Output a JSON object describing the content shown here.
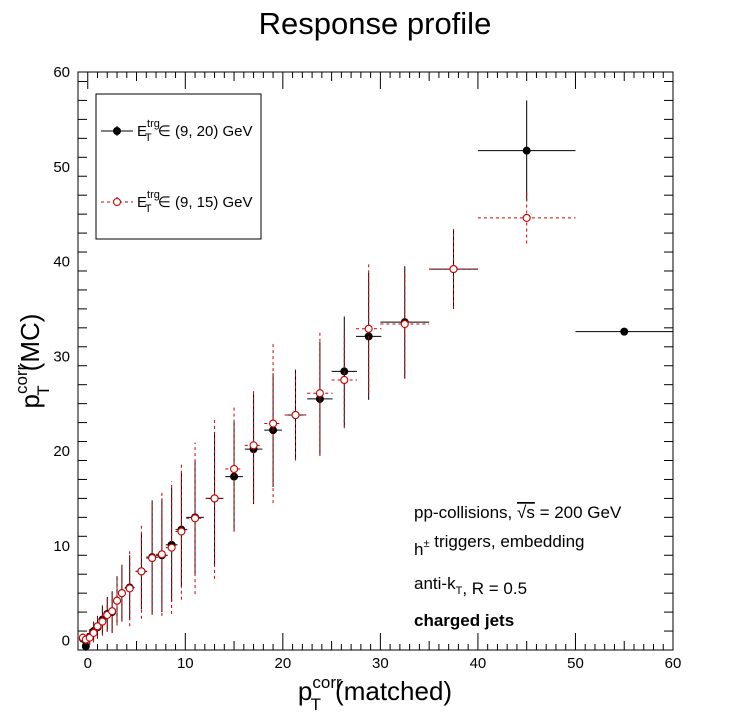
{
  "chart_data": {
    "type": "scatter",
    "title": "Response profile",
    "xlabel": {
      "base": "p",
      "sup": "corr",
      "sub": "T",
      "rest": "(matched)"
    },
    "ylabel": {
      "base": "p",
      "sup": "corr",
      "sub": "T",
      "rest": "(MC)"
    },
    "xlim": [
      -1,
      60
    ],
    "ylim": [
      -1,
      60
    ],
    "x_ticks": [
      0,
      10,
      20,
      30,
      40,
      50,
      60
    ],
    "y_ticks": [
      0,
      10,
      20,
      30,
      40,
      50,
      60
    ],
    "x_tick_labels": [
      "0",
      "10",
      "20",
      "30",
      "40",
      "50",
      "60"
    ],
    "y_tick_labels": [
      "0",
      "10",
      "20",
      "30",
      "40",
      "50",
      "60"
    ],
    "legend_position": "top-left",
    "series": [
      {
        "name": {
          "base": "E",
          "sup": "trg",
          "sub": "T",
          "rest": " ∈ (9, 20) GeV"
        },
        "color": "#000000",
        "marker": "filled-circle",
        "line": "solid",
        "points": [
          {
            "x": -0.5,
            "y": 0.2,
            "xe": 0.25,
            "ye": 0.5
          },
          {
            "x": -0.2,
            "y": -0.6,
            "xe": 0.25,
            "ye": 0.5
          },
          {
            "x": 0.2,
            "y": 0.4,
            "xe": 0.25,
            "ye": 0.8
          },
          {
            "x": 0.6,
            "y": 1.0,
            "xe": 0.25,
            "ye": 1.0
          },
          {
            "x": 1.0,
            "y": 1.4,
            "xe": 0.25,
            "ye": 1.2
          },
          {
            "x": 1.5,
            "y": 2.2,
            "xe": 0.3,
            "ye": 1.5
          },
          {
            "x": 2.0,
            "y": 2.8,
            "xe": 0.3,
            "ye": 1.8
          },
          {
            "x": 2.5,
            "y": 3.0,
            "xe": 0.3,
            "ye": 2.2
          },
          {
            "x": 3.0,
            "y": 4.2,
            "xe": 0.3,
            "ye": 2.6
          },
          {
            "x": 3.5,
            "y": 5.0,
            "xe": 0.3,
            "ye": 3.0
          },
          {
            "x": 4.3,
            "y": 5.6,
            "xe": 0.5,
            "ye": 3.4
          },
          {
            "x": 5.5,
            "y": 7.3,
            "xe": 0.6,
            "ye": 4.0
          },
          {
            "x": 6.6,
            "y": 8.8,
            "xe": 0.6,
            "ye": 6.0
          },
          {
            "x": 7.6,
            "y": 9.0,
            "xe": 0.6,
            "ye": 6.0
          },
          {
            "x": 8.6,
            "y": 10.1,
            "xe": 0.6,
            "ye": 6.0
          },
          {
            "x": 9.6,
            "y": 11.7,
            "xe": 0.6,
            "ye": 6.0
          },
          {
            "x": 11.0,
            "y": 13.0,
            "xe": 0.9,
            "ye": 6.0
          },
          {
            "x": 13.0,
            "y": 15.0,
            "xe": 0.9,
            "ye": 7.0
          },
          {
            "x": 15.0,
            "y": 17.3,
            "xe": 0.9,
            "ye": 5.8
          },
          {
            "x": 17.0,
            "y": 20.2,
            "xe": 0.9,
            "ye": 5.8
          },
          {
            "x": 19.0,
            "y": 22.2,
            "xe": 0.9,
            "ye": 6.0
          },
          {
            "x": 21.3,
            "y": 23.8,
            "xe": 1.1,
            "ye": 4.8
          },
          {
            "x": 23.8,
            "y": 25.5,
            "xe": 1.3,
            "ye": 6.0
          },
          {
            "x": 26.3,
            "y": 28.4,
            "xe": 1.3,
            "ye": 5.8
          },
          {
            "x": 28.8,
            "y": 32.1,
            "xe": 1.3,
            "ye": 6.7
          },
          {
            "x": 32.5,
            "y": 33.6,
            "xe": 2.5,
            "ye": 5.9
          },
          {
            "x": 37.5,
            "y": 39.2,
            "xe": 2.5,
            "ye": 4.2
          },
          {
            "x": 45.0,
            "y": 51.7,
            "xe": 5.0,
            "ye": 5.3
          },
          {
            "x": 55.0,
            "y": 32.6,
            "xe": 5.0,
            "ye": 0.0
          }
        ]
      },
      {
        "name": {
          "base": "E",
          "sup": "trg",
          "sub": "T",
          "rest": " ∈ (9, 15) GeV"
        },
        "color": "#cc0000",
        "marker": "open-circle",
        "line": "dashed",
        "points": [
          {
            "x": -0.5,
            "y": 0.3,
            "xe": 0.25,
            "ye": 0.5
          },
          {
            "x": -0.2,
            "y": 0.1,
            "xe": 0.25,
            "ye": 0.5
          },
          {
            "x": 0.2,
            "y": 0.3,
            "xe": 0.25,
            "ye": 0.8
          },
          {
            "x": 0.6,
            "y": 0.8,
            "xe": 0.25,
            "ye": 1.0
          },
          {
            "x": 1.0,
            "y": 1.5,
            "xe": 0.25,
            "ye": 1.2
          },
          {
            "x": 1.5,
            "y": 2.0,
            "xe": 0.3,
            "ye": 1.5
          },
          {
            "x": 2.0,
            "y": 2.7,
            "xe": 0.3,
            "ye": 1.8
          },
          {
            "x": 2.5,
            "y": 3.1,
            "xe": 0.3,
            "ye": 2.2
          },
          {
            "x": 3.0,
            "y": 4.2,
            "xe": 0.3,
            "ye": 2.6
          },
          {
            "x": 3.5,
            "y": 5.0,
            "xe": 0.3,
            "ye": 3.0
          },
          {
            "x": 4.3,
            "y": 5.5,
            "xe": 0.5,
            "ye": 4.0
          },
          {
            "x": 5.5,
            "y": 7.3,
            "xe": 0.6,
            "ye": 5.0
          },
          {
            "x": 6.6,
            "y": 8.7,
            "xe": 0.6,
            "ye": 6.0
          },
          {
            "x": 7.6,
            "y": 9.1,
            "xe": 0.6,
            "ye": 6.5
          },
          {
            "x": 8.6,
            "y": 9.8,
            "xe": 0.6,
            "ye": 7.0
          },
          {
            "x": 9.6,
            "y": 11.5,
            "xe": 0.6,
            "ye": 7.2
          },
          {
            "x": 11.0,
            "y": 12.9,
            "xe": 0.9,
            "ye": 8.0
          },
          {
            "x": 13.0,
            "y": 15.0,
            "xe": 0.9,
            "ye": 8.5
          },
          {
            "x": 15.0,
            "y": 18.1,
            "xe": 0.9,
            "ye": 6.5
          },
          {
            "x": 17.0,
            "y": 20.6,
            "xe": 0.9,
            "ye": 6.0
          },
          {
            "x": 19.0,
            "y": 22.9,
            "xe": 0.9,
            "ye": 8.4
          },
          {
            "x": 21.3,
            "y": 23.8,
            "xe": 1.1,
            "ye": 4.8
          },
          {
            "x": 23.8,
            "y": 26.1,
            "xe": 1.3,
            "ye": 6.6
          },
          {
            "x": 26.3,
            "y": 27.5,
            "xe": 1.3,
            "ye": 5.1
          },
          {
            "x": 28.8,
            "y": 32.9,
            "xe": 1.3,
            "ye": 6.8
          },
          {
            "x": 32.5,
            "y": 33.4,
            "xe": 2.5,
            "ye": 5.8
          },
          {
            "x": 37.5,
            "y": 39.2,
            "xe": 2.5,
            "ye": 4.2
          },
          {
            "x": 45.0,
            "y": 44.6,
            "xe": 5.0,
            "ye": 2.7
          }
        ]
      }
    ],
    "annotations": [
      {
        "style": "normal",
        "parts": [
          {
            "t": "pp-collisions, "
          },
          {
            "t": "√s",
            "sqrt": true
          },
          {
            "t": " = 200 GeV"
          }
        ]
      },
      {
        "style": "normal",
        "parts": [
          {
            "t": "h"
          },
          {
            "t": "±",
            "sup": true
          },
          {
            "t": " triggers, embedding"
          }
        ]
      },
      {
        "style": "normal",
        "parts": [
          {
            "t": "anti-k"
          },
          {
            "t": "T",
            "sub": true
          },
          {
            "t": ", R = 0.5"
          }
        ]
      },
      {
        "style": "bold",
        "parts": [
          {
            "t": "charged jets"
          }
        ]
      }
    ]
  }
}
